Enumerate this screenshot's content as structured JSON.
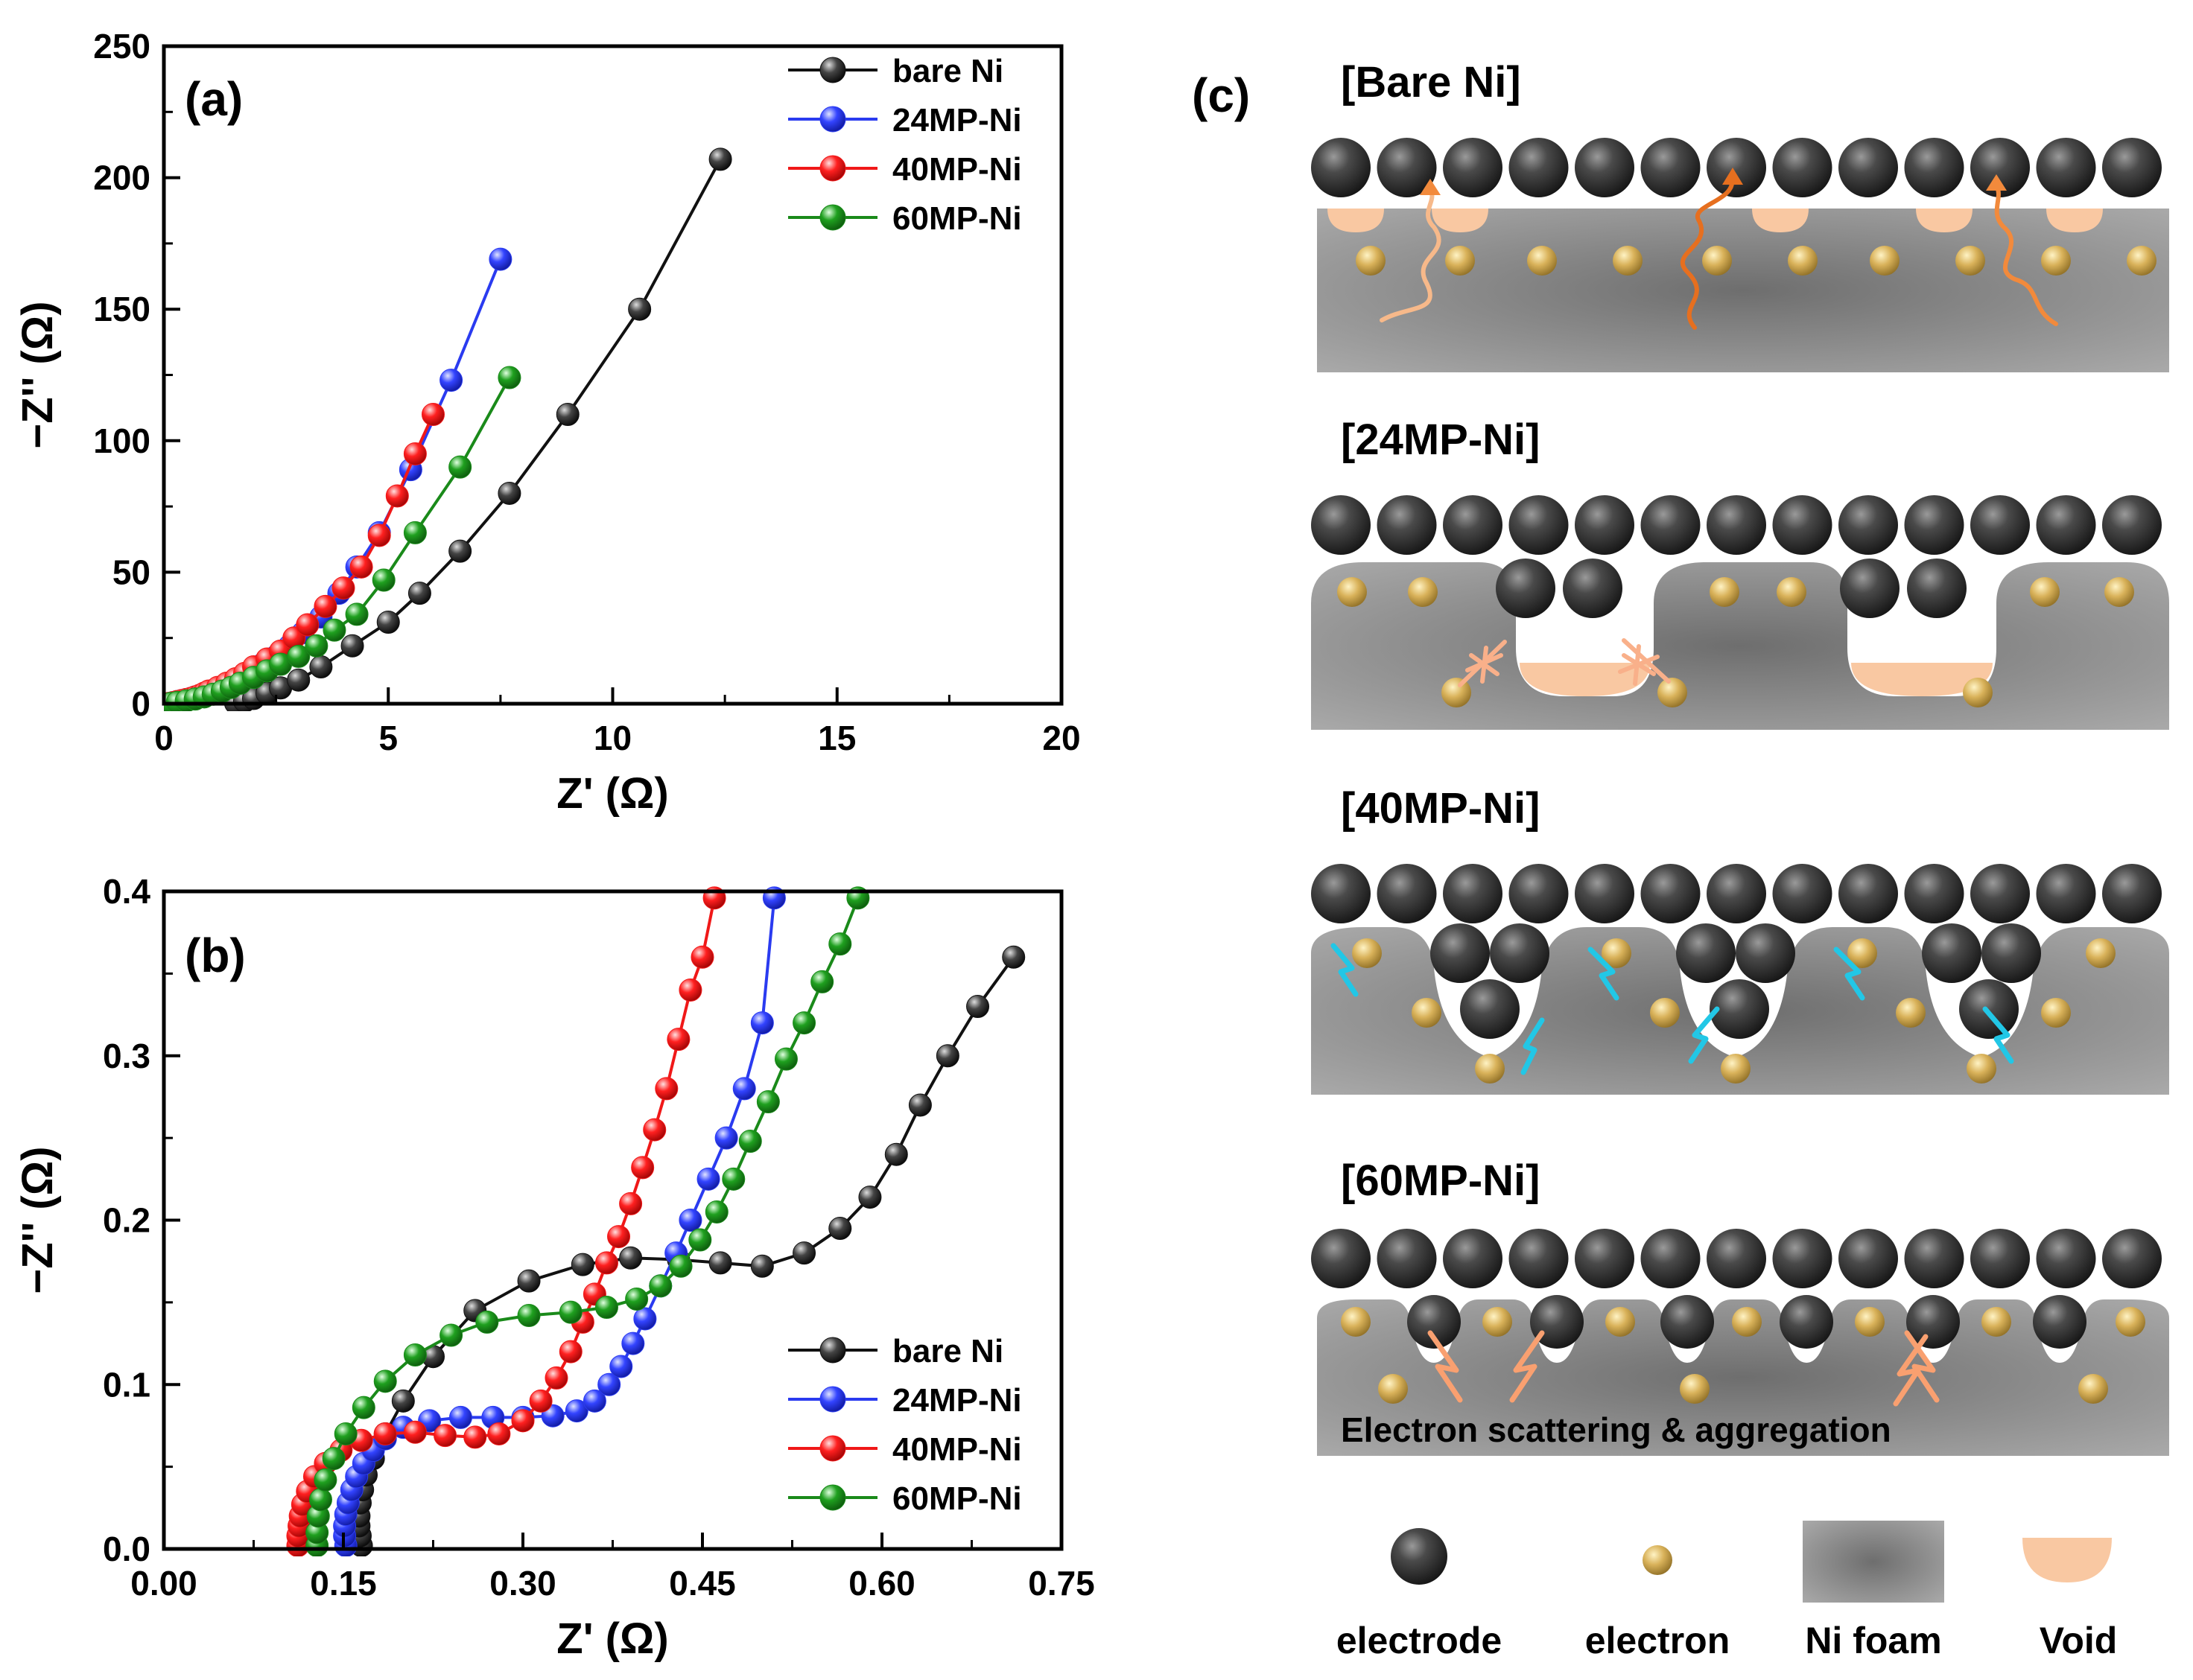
{
  "chart_data": [
    {
      "panel": "(a)",
      "type": "scatter",
      "xlabel": "Z' (Ω)",
      "ylabel": "−Z'' (Ω)",
      "xlim": [
        0,
        20
      ],
      "ylim": [
        0,
        250
      ],
      "xticks": [
        "0",
        "5",
        "10",
        "15",
        "20"
      ],
      "yticks": [
        "0",
        "50",
        "100",
        "150",
        "200",
        "250"
      ],
      "legend_position": "top-right",
      "series": [
        {
          "name": "bare Ni",
          "color": "#111111",
          "x": [
            1.6,
            1.8,
            2.0,
            2.3,
            2.6,
            3.0,
            3.5,
            4.2,
            5.0,
            5.7,
            6.6,
            7.7,
            9.0,
            10.6,
            12.4
          ],
          "y": [
            0.2,
            1,
            2,
            4,
            6,
            9,
            14,
            22,
            31,
            42,
            58,
            80,
            110,
            150,
            207
          ]
        },
        {
          "name": "24MP-Ni",
          "color": "#2a3bf0",
          "x": [
            0.12,
            0.2,
            0.3,
            0.4,
            0.5,
            0.6,
            0.7,
            0.8,
            0.9,
            1.0,
            1.2,
            1.4,
            1.6,
            1.8,
            2.0,
            2.2,
            2.5,
            2.8,
            3.1,
            3.5,
            3.9,
            4.3,
            4.8,
            5.5,
            6.4,
            7.5
          ],
          "y": [
            0.1,
            0.4,
            0.8,
            1.2,
            1.6,
            2,
            2.6,
            3,
            3.6,
            4.2,
            5.5,
            7,
            8.5,
            10.5,
            12.5,
            15,
            18,
            22,
            27,
            33,
            42,
            52,
            65,
            89,
            123,
            169
          ]
        },
        {
          "name": "40MP-Ni",
          "color": "#f01818",
          "x": [
            0.11,
            0.2,
            0.3,
            0.4,
            0.5,
            0.6,
            0.7,
            0.8,
            0.9,
            1.0,
            1.2,
            1.4,
            1.6,
            1.8,
            2.0,
            2.3,
            2.6,
            2.9,
            3.2,
            3.6,
            4.0,
            4.4,
            4.8,
            5.2,
            5.6,
            6.0
          ],
          "y": [
            0.1,
            0.4,
            0.8,
            1.2,
            1.6,
            2,
            2.6,
            3.2,
            4,
            4.8,
            6.2,
            7.8,
            9.5,
            11.5,
            14,
            17,
            20,
            25,
            30,
            37,
            44,
            52,
            64,
            79,
            95,
            110
          ]
        },
        {
          "name": "60MP-Ni",
          "color": "#1a8a1a",
          "x": [
            0.15,
            0.3,
            0.5,
            0.7,
            0.9,
            1.1,
            1.3,
            1.5,
            1.7,
            2.0,
            2.3,
            2.6,
            3.0,
            3.4,
            3.8,
            4.3,
            4.9,
            5.6,
            6.6,
            7.7
          ],
          "y": [
            0.1,
            0.5,
            1.1,
            1.8,
            2.6,
            3.6,
            4.8,
            6.2,
            7.8,
            10,
            12.5,
            15,
            18,
            22,
            28,
            34,
            47,
            65,
            90,
            124
          ]
        }
      ]
    },
    {
      "panel": "(b)",
      "type": "scatter",
      "xlabel": "Z' (Ω)",
      "ylabel": "−Z'' (Ω)",
      "xlim": [
        0,
        0.75
      ],
      "ylim": [
        0,
        0.4
      ],
      "xticks": [
        "0.00",
        "0.15",
        "0.30",
        "0.45",
        "0.60",
        "0.75"
      ],
      "yticks": [
        "0.0",
        "0.1",
        "0.2",
        "0.3",
        "0.4"
      ],
      "legend_position": "bottom-right",
      "series": [
        {
          "name": "bare Ni",
          "color": "#111111",
          "x": [
            0.165,
            0.164,
            0.163,
            0.163,
            0.164,
            0.166,
            0.169,
            0.175,
            0.185,
            0.2,
            0.225,
            0.26,
            0.305,
            0.35,
            0.39,
            0.43,
            0.465,
            0.5,
            0.535,
            0.565,
            0.59,
            0.612,
            0.632,
            0.655,
            0.68,
            0.71
          ],
          "y": [
            0.002,
            0.008,
            0.014,
            0.02,
            0.028,
            0.036,
            0.045,
            0.055,
            0.07,
            0.09,
            0.117,
            0.145,
            0.163,
            0.173,
            0.177,
            0.176,
            0.174,
            0.172,
            0.18,
            0.195,
            0.214,
            0.24,
            0.27,
            0.3,
            0.33,
            0.36
          ]
        },
        {
          "name": "24MP-Ni",
          "color": "#2a3bf0",
          "x": [
            0.152,
            0.151,
            0.151,
            0.152,
            0.154,
            0.157,
            0.161,
            0.167,
            0.175,
            0.185,
            0.2,
            0.222,
            0.248,
            0.275,
            0.3,
            0.325,
            0.345,
            0.36,
            0.372,
            0.382,
            0.392,
            0.402,
            0.415,
            0.428,
            0.44,
            0.455,
            0.47,
            0.485,
            0.5,
            0.51
          ],
          "y": [
            0.002,
            0.008,
            0.014,
            0.021,
            0.028,
            0.036,
            0.044,
            0.052,
            0.06,
            0.067,
            0.074,
            0.078,
            0.08,
            0.08,
            0.08,
            0.081,
            0.084,
            0.09,
            0.1,
            0.111,
            0.125,
            0.14,
            0.16,
            0.18,
            0.2,
            0.225,
            0.25,
            0.28,
            0.32,
            0.396
          ]
        },
        {
          "name": "40MP-Ni",
          "color": "#f01818",
          "x": [
            0.112,
            0.112,
            0.113,
            0.114,
            0.116,
            0.12,
            0.126,
            0.135,
            0.148,
            0.165,
            0.185,
            0.21,
            0.235,
            0.26,
            0.28,
            0.3,
            0.315,
            0.328,
            0.34,
            0.35,
            0.36,
            0.37,
            0.38,
            0.39,
            0.4,
            0.41,
            0.42,
            0.43,
            0.44,
            0.45,
            0.46
          ],
          "y": [
            0.002,
            0.008,
            0.014,
            0.02,
            0.027,
            0.035,
            0.044,
            0.052,
            0.06,
            0.066,
            0.07,
            0.071,
            0.069,
            0.068,
            0.07,
            0.078,
            0.09,
            0.104,
            0.12,
            0.138,
            0.155,
            0.174,
            0.19,
            0.21,
            0.232,
            0.255,
            0.28,
            0.31,
            0.34,
            0.36,
            0.396
          ]
        },
        {
          "name": "60MP-Ni",
          "color": "#1a8a1a",
          "x": [
            0.128,
            0.128,
            0.129,
            0.131,
            0.135,
            0.142,
            0.152,
            0.167,
            0.185,
            0.21,
            0.24,
            0.27,
            0.305,
            0.34,
            0.37,
            0.395,
            0.415,
            0.432,
            0.448,
            0.462,
            0.476,
            0.49,
            0.505,
            0.52,
            0.535,
            0.55,
            0.565,
            0.58
          ],
          "y": [
            0.002,
            0.01,
            0.02,
            0.03,
            0.042,
            0.055,
            0.07,
            0.086,
            0.102,
            0.118,
            0.13,
            0.138,
            0.142,
            0.144,
            0.147,
            0.152,
            0.16,
            0.172,
            0.188,
            0.205,
            0.225,
            0.248,
            0.272,
            0.298,
            0.32,
            0.345,
            0.368,
            0.396
          ]
        }
      ]
    }
  ],
  "panel_c": {
    "label": "(c)",
    "sections": [
      {
        "title": "[Bare Ni]"
      },
      {
        "title": "[24MP-Ni]"
      },
      {
        "title": "[40MP-Ni]"
      },
      {
        "title": "[60MP-Ni]"
      }
    ],
    "annotation": "Electron scattering & aggregation",
    "legend": [
      {
        "label": "electrode"
      },
      {
        "label": "electron"
      },
      {
        "label": "Ni foam"
      },
      {
        "label": "Void"
      }
    ],
    "colors": {
      "electrode": "#2b2b2b",
      "electron": "#c9a24a",
      "foam": "#8a8a8a",
      "void": "#f9c8a2",
      "arrow_orange": "#f28a3c",
      "arrow_cyan": "#22c7e6"
    }
  }
}
